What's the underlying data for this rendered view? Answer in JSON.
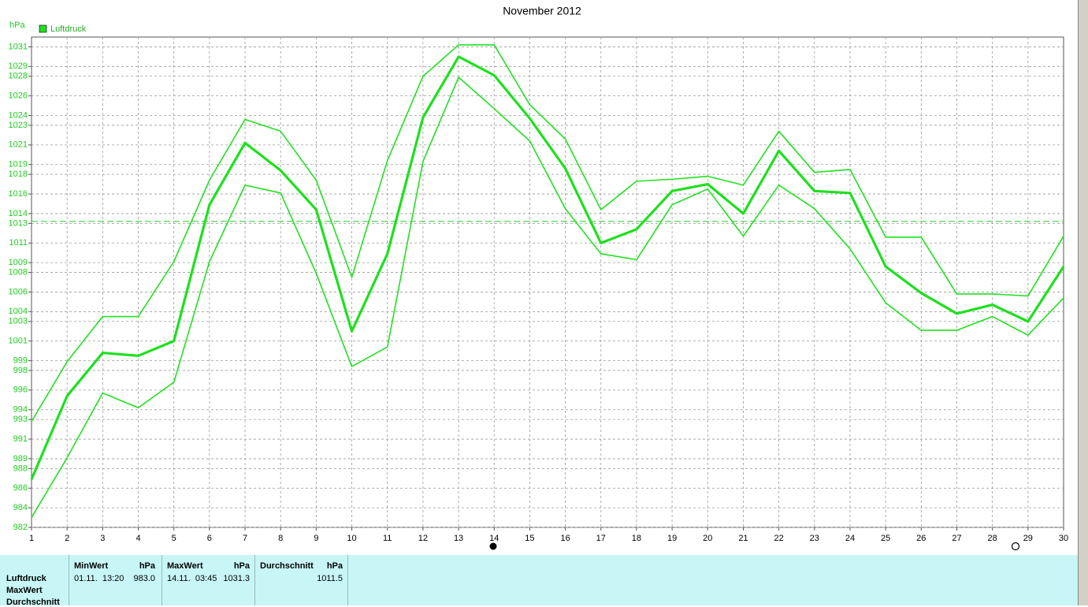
{
  "chart_data": {
    "type": "line",
    "title": "November 2012",
    "y_label": "hPa",
    "legend": "Luftdruck",
    "x": [
      1,
      2,
      3,
      4,
      5,
      6,
      7,
      8,
      9,
      10,
      11,
      12,
      13,
      14,
      15,
      16,
      17,
      18,
      19,
      20,
      21,
      22,
      23,
      24,
      25,
      26,
      27,
      28,
      29,
      30
    ],
    "xlim": [
      1,
      30
    ],
    "xticks": [
      1,
      2,
      3,
      4,
      5,
      6,
      7,
      8,
      9,
      10,
      11,
      12,
      13,
      14,
      15,
      16,
      17,
      18,
      19,
      20,
      21,
      22,
      23,
      24,
      25,
      26,
      27,
      28,
      29,
      30
    ],
    "ylim": [
      982,
      1032
    ],
    "yticks": [
      982,
      984,
      986,
      988,
      989,
      991,
      993,
      994,
      996,
      998,
      999,
      1001,
      1003,
      1004,
      1006,
      1008,
      1009,
      1011,
      1013,
      1014,
      1016,
      1018,
      1019,
      1021,
      1023,
      1024,
      1026,
      1028,
      1029,
      1031
    ],
    "grid": true,
    "reference_line": 1013.2,
    "series": [
      {
        "color": "#22e022",
        "width": 1.6,
        "values": [
          992.8,
          998.9,
          1003.5,
          1003.5,
          1009.1,
          1017.4,
          1023.6,
          1022.4,
          1017.4,
          1007.5,
          1019.4,
          1028.0,
          1031.2,
          1031.2,
          1025.1,
          1021.6,
          1014.4,
          1017.3,
          1017.5,
          1017.8,
          1016.9,
          1022.4,
          1018.2,
          1018.5,
          1011.6,
          1011.6,
          1005.8,
          1005.8,
          1005.6,
          1011.7
        ]
      },
      {
        "color": "#1ee01e",
        "width": 3.2,
        "values": [
          986.9,
          995.4,
          999.8,
          999.5,
          1001.0,
          1014.9,
          1021.2,
          1018.4,
          1014.4,
          1002.0,
          1009.9,
          1023.8,
          1030.0,
          1028.1,
          1023.7,
          1018.6,
          1011.0,
          1012.4,
          1016.3,
          1017.0,
          1014.0,
          1020.4,
          1016.3,
          1016.1,
          1008.6,
          1005.9,
          1003.8,
          1004.7,
          1003.0,
          1008.6
        ]
      },
      {
        "color": "#22e022",
        "width": 1.6,
        "values": [
          983.0,
          989.1,
          995.7,
          994.2,
          996.8,
          1009.1,
          1016.9,
          1016.1,
          1007.9,
          998.4,
          1000.4,
          1019.3,
          1027.9,
          1024.7,
          1021.4,
          1014.5,
          1009.9,
          1009.3,
          1014.9,
          1016.5,
          1011.7,
          1016.9,
          1014.5,
          1010.4,
          1004.9,
          1002.1,
          1002.1,
          1003.5,
          1001.6,
          1005.4
        ]
      }
    ]
  },
  "stats": {
    "row_labels": [
      "Luftdruck",
      "MaxWert",
      "Durchschnitt"
    ],
    "columns": [
      {
        "header": "MinWert",
        "unit": "hPa",
        "time": "01.11.  13:20",
        "value": "983.0"
      },
      {
        "header": "MaxWert",
        "unit": "hPa",
        "time": "14.11.  03:45",
        "value": "1031.3"
      },
      {
        "header": "Durchschnitt",
        "unit": "hPa",
        "value": "1011.5"
      }
    ]
  }
}
